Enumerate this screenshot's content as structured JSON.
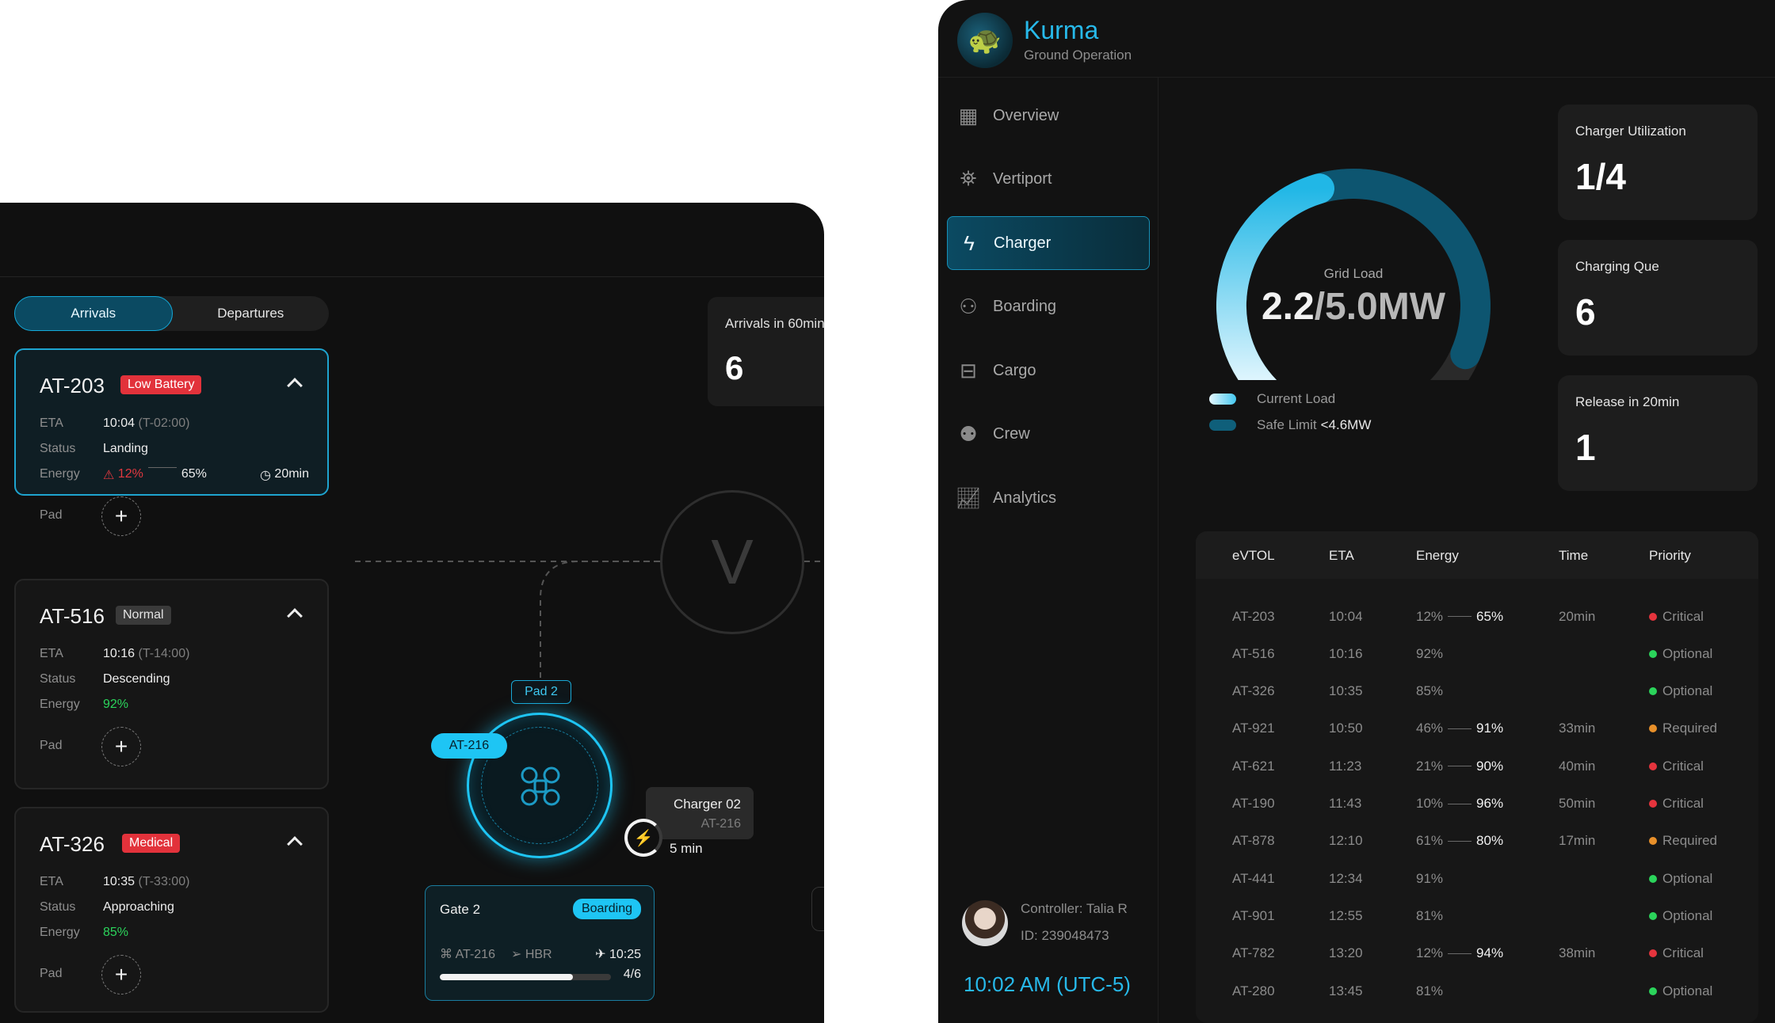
{
  "left": {
    "tabs": [
      {
        "label": "Arrivals",
        "active": true
      },
      {
        "label": "Departures",
        "active": false
      }
    ],
    "flights": [
      {
        "id": "AT-203",
        "badge": "Low Battery",
        "badge_color": "#e2323b",
        "eta": "10:04",
        "eta_offset": "(T-02:00)",
        "status": "Landing",
        "energy_low": "12%",
        "energy_target": "65%",
        "duration": "20min",
        "active": true
      },
      {
        "id": "AT-516",
        "badge": "Normal",
        "badge_color": "#3a3a3a",
        "eta": "10:16",
        "eta_offset": "(T-14:00)",
        "status": "Descending",
        "energy": "92%"
      },
      {
        "id": "AT-326",
        "badge": "Medical",
        "badge_color": "#e2323b",
        "eta": "10:35",
        "eta_offset": "(T-33:00)",
        "status": "Approaching",
        "energy": "85%"
      }
    ],
    "labels": {
      "eta": "ETA",
      "status": "Status",
      "energy": "Energy",
      "pad": "Pad"
    },
    "arrivals_box": {
      "title": "Arrivals in 60min",
      "value": "6"
    },
    "vertiport_letter": "V",
    "pad_label": "Pad 2",
    "pad_aircraft": "AT-216",
    "charger": {
      "name": "Charger 02",
      "aircraft": "AT-216",
      "time": "5 min"
    },
    "gate": {
      "name": "Gate 2",
      "status": "Boarding",
      "aircraft": "AT-216",
      "destination": "HBR",
      "time": "10:25",
      "count": "4/6",
      "progress": 0.78
    }
  },
  "right": {
    "brand": {
      "name": "Kurma",
      "subtitle": "Ground Operation"
    },
    "nav": [
      {
        "label": "Overview",
        "icon": "grid-icon"
      },
      {
        "label": "Vertiport",
        "icon": "tower-icon"
      },
      {
        "label": "Charger",
        "icon": "bolt-icon",
        "active": true
      },
      {
        "label": "Boarding",
        "icon": "boarding-icon"
      },
      {
        "label": "Cargo",
        "icon": "cargo-icon"
      },
      {
        "label": "Crew",
        "icon": "crew-icon"
      },
      {
        "label": "Analytics",
        "icon": "analytics-icon"
      }
    ],
    "controller": {
      "name": "Controller: Talia R",
      "id": "ID: 239048473",
      "clock": "10:02 AM (UTC-5)"
    },
    "gauge": {
      "label": "Grid Load",
      "current": "2.2",
      "max": "/5.0MW",
      "current_fraction": 0.44,
      "safe_fraction": 0.92
    },
    "legend": [
      {
        "label": "Current Load",
        "color": "#5fd6f6"
      },
      {
        "label": "Safe Limit",
        "value": "<4.6MW",
        "color": "#0f5f7a"
      }
    ],
    "stats": [
      {
        "title": "Charger Utilization",
        "value": "1/4"
      },
      {
        "title": "Charging Que",
        "value": "6"
      },
      {
        "title": "Release in 20min",
        "value": "1"
      }
    ],
    "table": {
      "headers": [
        "eVTOL",
        "ETA",
        "Energy",
        "Time",
        "Priority"
      ],
      "rows": [
        {
          "evtol": "AT-203",
          "eta": "10:04",
          "energy": "12%",
          "target": "65%",
          "time": "20min",
          "priority": "Critical"
        },
        {
          "evtol": "AT-516",
          "eta": "10:16",
          "energy": "92%",
          "target": "",
          "time": "",
          "priority": "Optional"
        },
        {
          "evtol": "AT-326",
          "eta": "10:35",
          "energy": "85%",
          "target": "",
          "time": "",
          "priority": "Optional"
        },
        {
          "evtol": "AT-921",
          "eta": "10:50",
          "energy": "46%",
          "target": "91%",
          "time": "33min",
          "priority": "Required"
        },
        {
          "evtol": "AT-621",
          "eta": "11:23",
          "energy": "21%",
          "target": "90%",
          "time": "40min",
          "priority": "Critical"
        },
        {
          "evtol": "AT-190",
          "eta": "11:43",
          "energy": "10%",
          "target": "96%",
          "time": "50min",
          "priority": "Critical"
        },
        {
          "evtol": "AT-878",
          "eta": "12:10",
          "energy": "61%",
          "target": "80%",
          "time": "17min",
          "priority": "Required"
        },
        {
          "evtol": "AT-441",
          "eta": "12:34",
          "energy": "91%",
          "target": "",
          "time": "",
          "priority": "Optional"
        },
        {
          "evtol": "AT-901",
          "eta": "12:55",
          "energy": "81%",
          "target": "",
          "time": "",
          "priority": "Optional"
        },
        {
          "evtol": "AT-782",
          "eta": "13:20",
          "energy": "12%",
          "target": "94%",
          "time": "38min",
          "priority": "Critical"
        },
        {
          "evtol": "AT-280",
          "eta": "13:45",
          "energy": "81%",
          "target": "",
          "time": "",
          "priority": "Optional"
        }
      ],
      "priority_colors": {
        "Critical": "#e5343d",
        "Optional": "#2bd45b",
        "Required": "#e8902a"
      }
    }
  }
}
